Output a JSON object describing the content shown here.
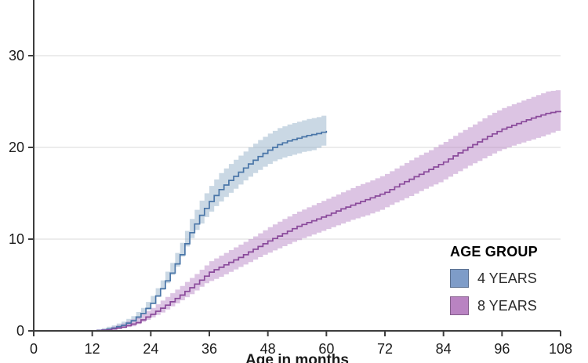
{
  "chart_data": {
    "type": "line",
    "subtype": "step-cumulative-incidence-with-confidence-bands",
    "title": "",
    "xlabel": "Age in months",
    "ylabel": "",
    "xlim": [
      0,
      108
    ],
    "ylim": [
      0,
      36
    ],
    "xticks": [
      0,
      12,
      24,
      36,
      48,
      60,
      72,
      84,
      96,
      108
    ],
    "yticks": [
      0,
      10,
      20,
      30
    ],
    "gridlines_y": [
      10,
      20,
      30
    ],
    "grid_color": "#d9d9d9",
    "axis_color": "#3d3d3d",
    "tick_label_color": "#1c1c1c",
    "legend": {
      "title": "AGE GROUP",
      "position": "right-bottom"
    },
    "series": [
      {
        "name": "4 YEARS",
        "color": "#4a76a8",
        "band_color": "#89a9c4",
        "band_opacity": 0.45,
        "swatch_color": "#7e9cc8",
        "x": [
          0,
          12,
          14,
          16,
          18,
          20,
          22,
          24,
          26,
          28,
          30,
          32,
          34,
          36,
          38,
          40,
          42,
          44,
          46,
          48,
          50,
          52,
          54,
          56,
          58,
          60
        ],
        "est": [
          0,
          0,
          0.1,
          0.3,
          0.6,
          1.1,
          1.9,
          3.0,
          4.6,
          6.3,
          8.3,
          10.7,
          12.6,
          14.1,
          15.4,
          16.4,
          17.3,
          18.2,
          19.0,
          19.7,
          20.3,
          20.7,
          21.0,
          21.3,
          21.5,
          21.8
        ],
        "lo": [
          0,
          0,
          0,
          0.1,
          0.3,
          0.7,
          1.3,
          2.3,
          3.7,
          5.2,
          7.0,
          9.2,
          11.0,
          12.4,
          13.6,
          14.6,
          15.5,
          16.4,
          17.2,
          17.9,
          18.5,
          18.9,
          19.2,
          19.5,
          19.7,
          20.2
        ],
        "hi": [
          0,
          0,
          0.3,
          0.6,
          1.0,
          1.6,
          2.5,
          3.8,
          5.5,
          7.4,
          9.6,
          12.2,
          14.2,
          15.8,
          17.2,
          18.2,
          19.1,
          20.0,
          20.8,
          21.5,
          22.1,
          22.5,
          22.8,
          23.1,
          23.3,
          23.6
        ]
      },
      {
        "name": "8 YEARS",
        "color": "#8a4a9b",
        "band_color": "#b27cc0",
        "band_opacity": 0.45,
        "swatch_color": "#b983c2",
        "x": [
          0,
          12,
          15,
          18,
          21,
          24,
          27,
          30,
          33,
          36,
          39,
          42,
          45,
          48,
          51,
          54,
          57,
          60,
          63,
          66,
          69,
          72,
          75,
          78,
          81,
          84,
          87,
          90,
          93,
          96,
          99,
          102,
          105,
          108
        ],
        "est": [
          0,
          0,
          0.1,
          0.4,
          0.9,
          1.8,
          2.8,
          3.9,
          5.1,
          6.4,
          7.2,
          8.0,
          8.9,
          9.8,
          10.6,
          11.4,
          12.0,
          12.6,
          13.3,
          13.9,
          14.5,
          15.1,
          16.0,
          16.8,
          17.6,
          18.4,
          19.4,
          20.3,
          21.2,
          22.0,
          22.6,
          23.2,
          23.7,
          24.0
        ],
        "lo": [
          0,
          0,
          0,
          0.2,
          0.5,
          1.2,
          2.0,
          3.0,
          4.0,
          5.2,
          5.9,
          6.7,
          7.5,
          8.3,
          9.0,
          9.7,
          10.3,
          10.9,
          11.5,
          12.1,
          12.6,
          13.2,
          14.0,
          14.7,
          15.5,
          16.2,
          17.1,
          18.0,
          18.8,
          19.6,
          20.2,
          20.7,
          21.2,
          21.8
        ],
        "hi": [
          0,
          0,
          0.3,
          0.8,
          1.5,
          2.5,
          3.7,
          4.9,
          6.2,
          7.6,
          8.5,
          9.4,
          10.3,
          11.3,
          12.2,
          13.0,
          13.7,
          14.4,
          15.1,
          15.8,
          16.4,
          17.1,
          18.0,
          18.9,
          19.7,
          20.6,
          21.6,
          22.5,
          23.5,
          24.3,
          24.9,
          25.5,
          26.1,
          26.3
        ]
      }
    ]
  }
}
